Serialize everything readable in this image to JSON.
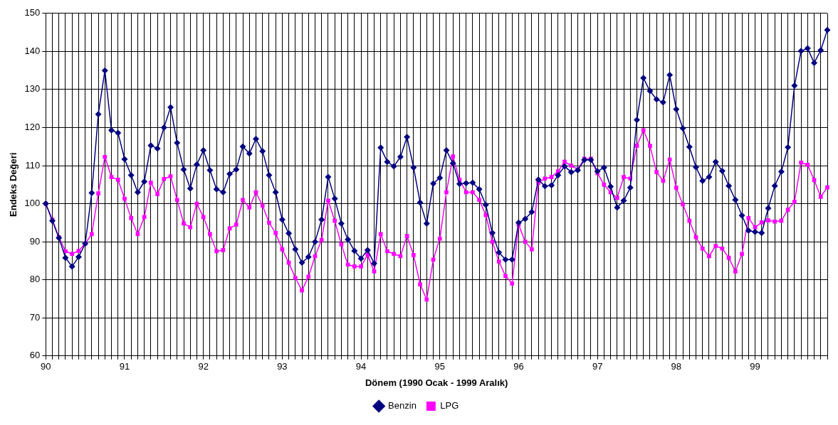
{
  "chart_data": {
    "type": "line",
    "xlabel": "Dönem (1990 Ocak - 1999 Aralık)",
    "ylabel": "Endeks Değeri",
    "categories": [
      "90",
      null,
      null,
      null,
      null,
      null,
      null,
      null,
      null,
      null,
      null,
      null,
      "91",
      null,
      null,
      null,
      null,
      null,
      null,
      null,
      null,
      null,
      null,
      null,
      "92",
      null,
      null,
      null,
      null,
      null,
      null,
      null,
      null,
      null,
      null,
      null,
      "93",
      null,
      null,
      null,
      null,
      null,
      null,
      null,
      null,
      null,
      null,
      null,
      "94",
      null,
      null,
      null,
      null,
      null,
      null,
      null,
      null,
      null,
      null,
      null,
      "95",
      null,
      null,
      null,
      null,
      null,
      null,
      null,
      null,
      null,
      null,
      null,
      "96",
      null,
      null,
      null,
      null,
      null,
      null,
      null,
      null,
      null,
      null,
      null,
      "97",
      null,
      null,
      null,
      null,
      null,
      null,
      null,
      null,
      null,
      null,
      null,
      "98",
      null,
      null,
      null,
      null,
      null,
      null,
      null,
      null,
      null,
      null,
      null,
      "99",
      null,
      null,
      null,
      null,
      null,
      null,
      null,
      null,
      null,
      null,
      null
    ],
    "series": [
      {
        "name": "Benzin",
        "color": "#000080",
        "marker": "diamond",
        "values": [
          100,
          95.5,
          91,
          85.8,
          83.5,
          86,
          89.5,
          102.8,
          123.5,
          135,
          119.3,
          118.6,
          111.7,
          107.5,
          103,
          105.8,
          115.3,
          114.5,
          120,
          125.3,
          116,
          109,
          104,
          110.3,
          114,
          108.8,
          103.8,
          103,
          107.8,
          109,
          115,
          113.2,
          117,
          113.8,
          107.5,
          103,
          95.8,
          92.2,
          88,
          84.5,
          86,
          90,
          95.8,
          107,
          101.3,
          94.8,
          90.6,
          87.6,
          85.6,
          87.8,
          84.3,
          114.7,
          111,
          109.8,
          112.3,
          117.5,
          109.5,
          100.3,
          94.8,
          105.3,
          106.8,
          114,
          110.6,
          105.2,
          105.4,
          105.5,
          103.8,
          99.7,
          92.3,
          87.2,
          85.3,
          85.3,
          95,
          96,
          97.8,
          106.3,
          104.6,
          104.8,
          107.5,
          109.8,
          108.3,
          108.8,
          111.5,
          111.5,
          108.5,
          109.5,
          104.5,
          99,
          100.8,
          104.2,
          122,
          133,
          129.6,
          127.4,
          126.6,
          133.8,
          124.8,
          119.8,
          114.9,
          109.6,
          106,
          107,
          111,
          108.6,
          104.7,
          101,
          96.9,
          92.9,
          92.6,
          92.3,
          98.8,
          104.7,
          108.4,
          114.8,
          131,
          140.1,
          140.8,
          137,
          140.3,
          145.6
        ]
      },
      {
        "name": "LPG",
        "color": "#ff00ff",
        "marker": "square",
        "values": [
          100,
          95.8,
          91.2,
          87.5,
          86.8,
          87.6,
          89.5,
          92,
          102.7,
          112.3,
          107,
          106.3,
          101.3,
          96.2,
          92,
          96.5,
          105.5,
          102.5,
          106.5,
          107.2,
          101,
          94.8,
          93.8,
          100,
          96.5,
          92,
          87.5,
          87.8,
          93.5,
          94.5,
          101,
          99,
          103,
          99.5,
          95,
          92.3,
          88,
          84.5,
          80.5,
          77.2,
          80.8,
          86.2,
          90.5,
          100.8,
          95.5,
          89.3,
          84,
          83.5,
          83.5,
          86.5,
          82.2,
          92,
          87.5,
          86.8,
          86.2,
          91.5,
          86.5,
          78.8,
          74.8,
          85.3,
          90.8,
          103,
          112.4,
          106.3,
          103,
          103,
          101,
          97,
          90,
          84.8,
          81,
          79,
          94.5,
          90,
          88,
          105.5,
          106.6,
          107,
          108.5,
          111,
          110,
          109,
          111.8,
          111.8,
          108,
          105,
          103,
          101.5,
          107,
          106.6,
          115.2,
          119.3,
          115.2,
          108.3,
          106,
          111.6,
          104.2,
          99.8,
          95.5,
          91.2,
          88.2,
          86.2,
          88.9,
          88.2,
          85.8,
          82.2,
          86.8,
          96.2,
          93.8,
          95.1,
          95.6,
          95.3,
          95.5,
          98.4,
          100.5,
          110.8,
          110.2,
          106.2,
          101.8,
          104.3
        ]
      }
    ],
    "ylim": [
      60,
      150
    ],
    "yticks": [
      60,
      70,
      80,
      90,
      100,
      110,
      120,
      130,
      140,
      150
    ],
    "grid": true,
    "legend": "bottom",
    "line_style": "solid"
  }
}
